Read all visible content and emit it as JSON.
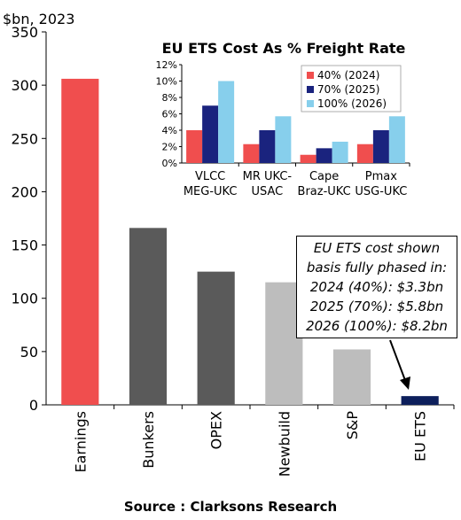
{
  "chart_data": [
    {
      "type": "bar",
      "ylabel": "$bn, 2023",
      "ylim": [
        0,
        350
      ],
      "yticks": [
        0,
        50,
        100,
        150,
        200,
        250,
        300,
        350
      ],
      "categories": [
        "Earnings",
        "Bunkers",
        "OPEX",
        "Newbuild",
        "S&P",
        "EU ETS"
      ],
      "values": [
        306,
        166,
        125,
        115,
        52,
        8.2
      ],
      "colors": [
        "#f04e4e",
        "#5a5a5a",
        "#5a5a5a",
        "#bdbdbd",
        "#bdbdbd",
        "#0d1f5c"
      ],
      "grid": false
    },
    {
      "type": "bar",
      "title": "EU ETS Cost As % Freight Rate",
      "ylim": [
        0,
        12
      ],
      "yticks": [
        "0%",
        "2%",
        "4%",
        "6%",
        "8%",
        "10%",
        "12%"
      ],
      "categories": [
        [
          "VLCC",
          "MEG-UKC"
        ],
        [
          "MR UKC-",
          "USAC"
        ],
        [
          "Cape",
          "Braz-UKC"
        ],
        [
          "Pmax",
          "USG-UKC"
        ]
      ],
      "series": [
        {
          "name": "40% (2024)",
          "color": "#f04e4e",
          "values": [
            4.0,
            2.3,
            1.0,
            2.3
          ]
        },
        {
          "name": "70% (2025)",
          "color": "#1a237e",
          "values": [
            7.0,
            4.0,
            1.8,
            4.0
          ]
        },
        {
          "name": "100% (2026)",
          "color": "#87cfec",
          "values": [
            10.0,
            5.7,
            2.6,
            5.7
          ]
        }
      ],
      "legend": "top-right",
      "grid": false
    }
  ],
  "annotation": {
    "lines": [
      "EU ETS cost shown",
      "basis fully phased in:",
      "2024 (40%): $3.3bn",
      "2025 (70%): $5.8bn",
      "2026 (100%): $8.2bn"
    ]
  },
  "source": "Source : Clarksons Research"
}
